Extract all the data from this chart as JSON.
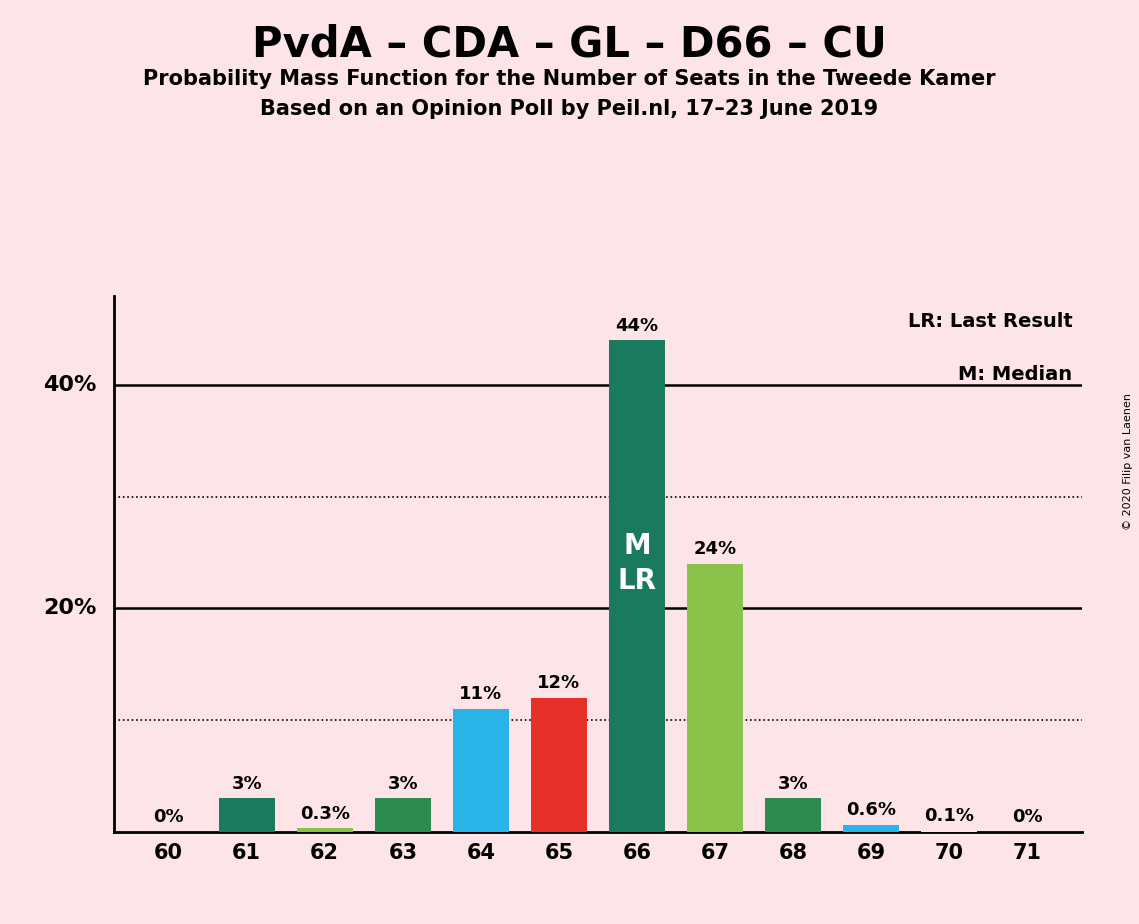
{
  "title": "PvdA – CDA – GL – D66 – CU",
  "subtitle1": "Probability Mass Function for the Number of Seats in the Tweede Kamer",
  "subtitle2": "Based on an Opinion Poll by Peil.nl, 17–23 June 2019",
  "copyright": "© 2020 Filip van Laenen",
  "seats": [
    60,
    61,
    62,
    63,
    64,
    65,
    66,
    67,
    68,
    69,
    70,
    71
  ],
  "values": [
    0.0,
    3.0,
    0.3,
    3.0,
    11.0,
    12.0,
    44.0,
    24.0,
    3.0,
    0.6,
    0.1,
    0.0
  ],
  "labels": [
    "0%",
    "3%",
    "0.3%",
    "3%",
    "11%",
    "12%",
    "44%",
    "24%",
    "3%",
    "0.6%",
    "0.1%",
    "0%"
  ],
  "colors": [
    "#fce4e8",
    "#1a7a5e",
    "#8bc34a",
    "#2d8a4e",
    "#29b3e8",
    "#e8302a",
    "#1a7a5e",
    "#8bc34a",
    "#2d8a4e",
    "#29b3e8",
    "#fce4e8",
    "#fce4e8"
  ],
  "median_seat": 66,
  "background_color": "#fce4e8",
  "legend_text1": "LR: Last Result",
  "legend_text2": "M: Median",
  "ylim": [
    0,
    48
  ],
  "dotted_grid": [
    10,
    30
  ],
  "solid_grid": [
    20,
    40
  ],
  "bar_width": 0.72
}
